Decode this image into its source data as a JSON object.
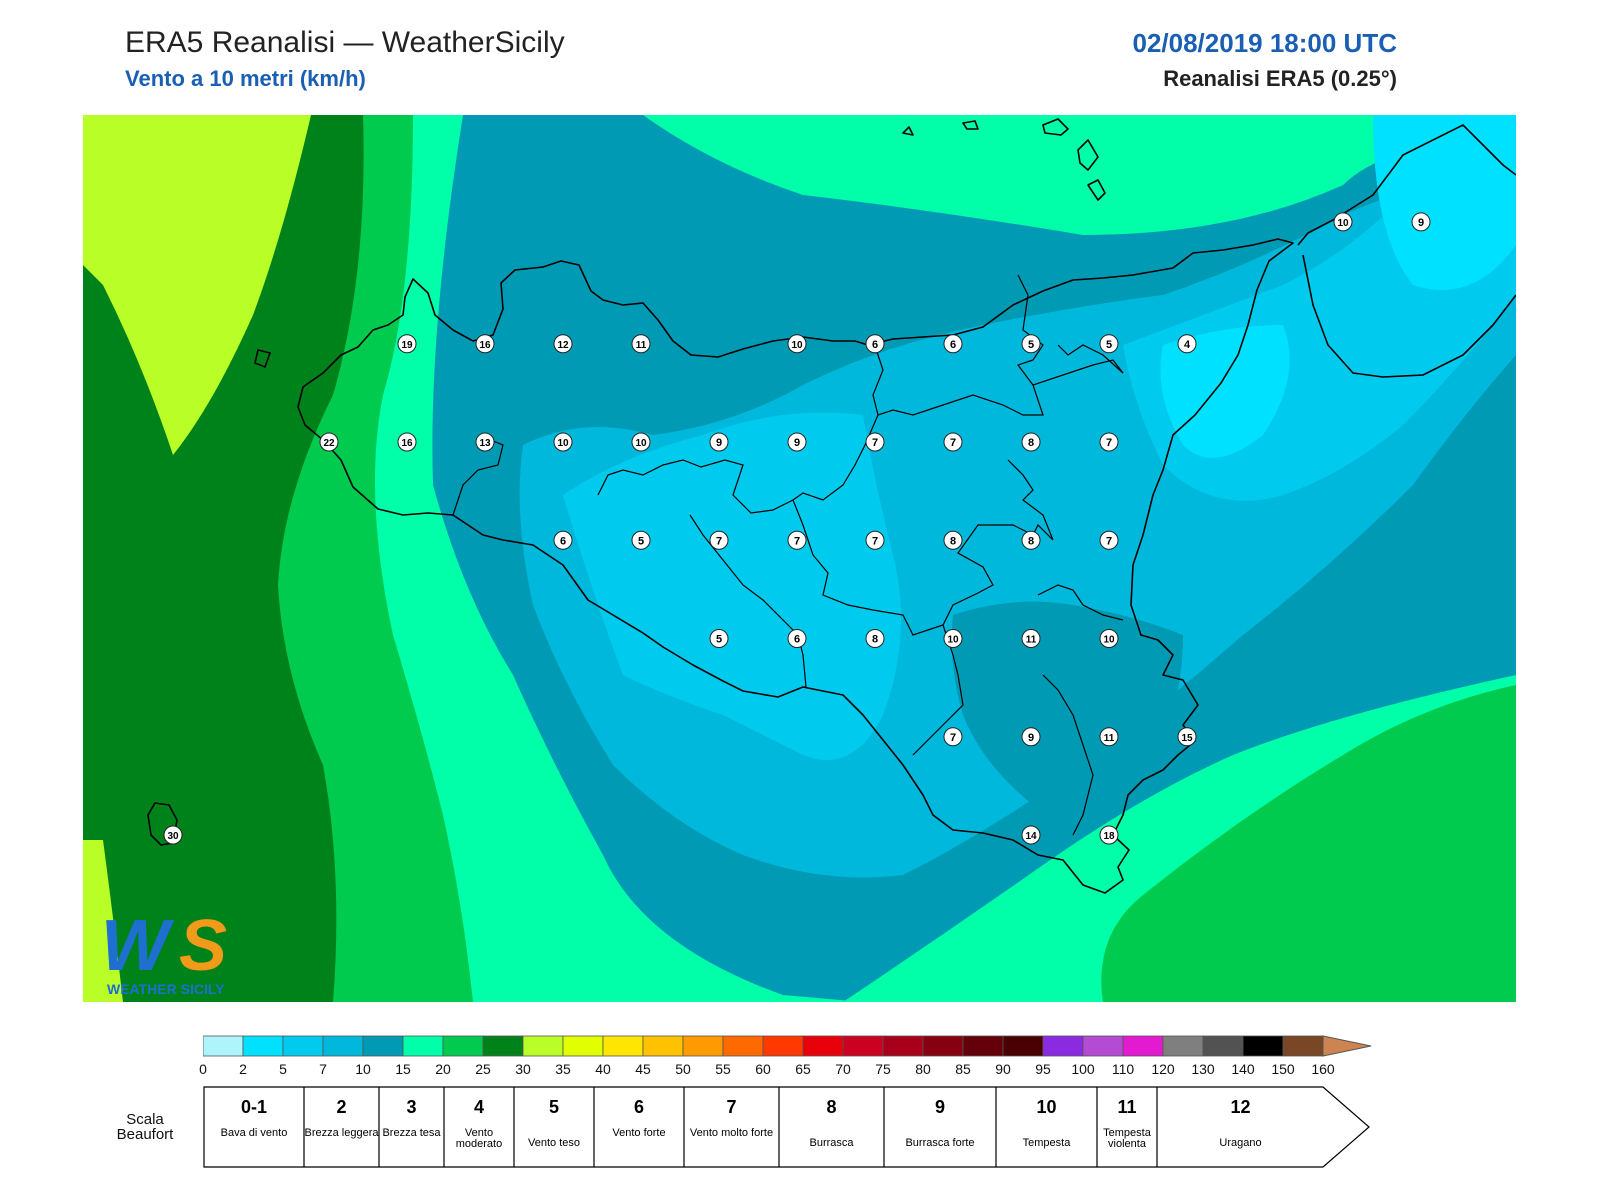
{
  "header": {
    "title": "ERA5 Reanalisi — WeatherSicily",
    "subtitle": "Vento a 10 metri (km/h)",
    "datetime": "02/08/2019 18:00 UTC",
    "model": "Reanalisi ERA5 (0.25°)"
  },
  "logo": {
    "letters": "WS",
    "text": "WEATHER SICILY"
  },
  "colorbar": {
    "ticks": [
      "0",
      "2",
      "5",
      "7",
      "10",
      "15",
      "20",
      "25",
      "30",
      "35",
      "40",
      "45",
      "50",
      "55",
      "60",
      "65",
      "70",
      "75",
      "80",
      "85",
      "90",
      "95",
      "100",
      "110",
      "120",
      "130",
      "140",
      "150",
      "160"
    ],
    "colors": [
      "#aef4fb",
      "#00e1ff",
      "#00cbee",
      "#00b8dc",
      "#009ab4",
      "#00ffa8",
      "#00cb4e",
      "#00821b",
      "#b9ff27",
      "#e1ff00",
      "#ffe600",
      "#ffc200",
      "#ff9b00",
      "#ff6a00",
      "#ff3900",
      "#e8000b",
      "#cc0021",
      "#a8001a",
      "#860012",
      "#63000a",
      "#4a0003",
      "#8a2be2",
      "#b44bd3",
      "#e21ad0",
      "#7f7f7f",
      "#525252",
      "#000000",
      "#7a4726",
      "#cd8450"
    ]
  },
  "beaufort": {
    "caption": "Scala Beaufort",
    "levels": [
      {
        "num": "0-1",
        "name": "Bava di vento"
      },
      {
        "num": "2",
        "name": "Brezza leggera"
      },
      {
        "num": "3",
        "name": "Brezza tesa"
      },
      {
        "num": "4",
        "name": "Vento moderato"
      },
      {
        "num": "5",
        "name": "Vento teso"
      },
      {
        "num": "6",
        "name": "Vento forte"
      },
      {
        "num": "7",
        "name": "Vento molto forte"
      },
      {
        "num": "8",
        "name": "Burrasca"
      },
      {
        "num": "9",
        "name": "Burrasca forte"
      },
      {
        "num": "10",
        "name": "Tempesta"
      },
      {
        "num": "11",
        "name": "Tempesta violenta"
      },
      {
        "num": "12",
        "name": "Uragano"
      }
    ]
  },
  "map_data": {
    "station_values": [
      {
        "v": "10",
        "lat": 38.36,
        "lon": 15.44
      },
      {
        "v": "9",
        "lat": 38.36,
        "lon": 15.69
      },
      {
        "v": "19",
        "lat": 38.05,
        "lon": 12.44
      },
      {
        "v": "16",
        "lat": 38.05,
        "lon": 12.69
      },
      {
        "v": "12",
        "lat": 38.05,
        "lon": 12.94
      },
      {
        "v": "11",
        "lat": 38.05,
        "lon": 13.19
      },
      {
        "v": "10",
        "lat": 38.05,
        "lon": 13.69
      },
      {
        "v": "6",
        "lat": 38.05,
        "lon": 13.94
      },
      {
        "v": "6",
        "lat": 38.05,
        "lon": 14.19
      },
      {
        "v": "5",
        "lat": 38.05,
        "lon": 14.44
      },
      {
        "v": "5",
        "lat": 38.05,
        "lon": 14.69
      },
      {
        "v": "4",
        "lat": 38.05,
        "lon": 14.94
      },
      {
        "v": "22",
        "lat": 37.8,
        "lon": 12.19
      },
      {
        "v": "16",
        "lat": 37.8,
        "lon": 12.44
      },
      {
        "v": "13",
        "lat": 37.8,
        "lon": 12.69
      },
      {
        "v": "10",
        "lat": 37.8,
        "lon": 12.94
      },
      {
        "v": "10",
        "lat": 37.8,
        "lon": 13.19
      },
      {
        "v": "9",
        "lat": 37.8,
        "lon": 13.44
      },
      {
        "v": "9",
        "lat": 37.8,
        "lon": 13.69
      },
      {
        "v": "7",
        "lat": 37.8,
        "lon": 13.94
      },
      {
        "v": "7",
        "lat": 37.8,
        "lon": 14.19
      },
      {
        "v": "8",
        "lat": 37.8,
        "lon": 14.44
      },
      {
        "v": "7",
        "lat": 37.8,
        "lon": 14.69
      },
      {
        "v": "6",
        "lat": 37.55,
        "lon": 12.94
      },
      {
        "v": "5",
        "lat": 37.55,
        "lon": 13.19
      },
      {
        "v": "7",
        "lat": 37.55,
        "lon": 13.44
      },
      {
        "v": "7",
        "lat": 37.55,
        "lon": 13.69
      },
      {
        "v": "7",
        "lat": 37.55,
        "lon": 13.94
      },
      {
        "v": "8",
        "lat": 37.55,
        "lon": 14.19
      },
      {
        "v": "8",
        "lat": 37.55,
        "lon": 14.44
      },
      {
        "v": "7",
        "lat": 37.55,
        "lon": 14.69
      },
      {
        "v": "5",
        "lat": 37.3,
        "lon": 13.44
      },
      {
        "v": "6",
        "lat": 37.3,
        "lon": 13.69
      },
      {
        "v": "8",
        "lat": 37.3,
        "lon": 13.94
      },
      {
        "v": "10",
        "lat": 37.3,
        "lon": 14.19
      },
      {
        "v": "11",
        "lat": 37.3,
        "lon": 14.44
      },
      {
        "v": "10",
        "lat": 37.3,
        "lon": 14.69
      },
      {
        "v": "7",
        "lat": 37.05,
        "lon": 14.19
      },
      {
        "v": "9",
        "lat": 37.05,
        "lon": 14.44
      },
      {
        "v": "11",
        "lat": 37.05,
        "lon": 14.69
      },
      {
        "v": "15",
        "lat": 37.05,
        "lon": 14.94
      },
      {
        "v": "14",
        "lat": 36.8,
        "lon": 14.44
      },
      {
        "v": "18",
        "lat": 36.8,
        "lon": 14.69
      },
      {
        "v": "30",
        "lat": 36.8,
        "lon": 11.69
      }
    ]
  }
}
